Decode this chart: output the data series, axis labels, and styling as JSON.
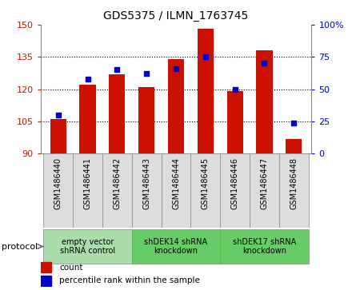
{
  "title": "GDS5375 / ILMN_1763745",
  "samples": [
    "GSM1486440",
    "GSM1486441",
    "GSM1486442",
    "GSM1486443",
    "GSM1486444",
    "GSM1486445",
    "GSM1486446",
    "GSM1486447",
    "GSM1486448"
  ],
  "counts": [
    106,
    122,
    127,
    121,
    134,
    148,
    119,
    138,
    97
  ],
  "percentiles": [
    30,
    58,
    65,
    62,
    66,
    75,
    50,
    70,
    24
  ],
  "ylim_left": [
    90,
    150
  ],
  "ylim_right": [
    0,
    100
  ],
  "yticks_left": [
    90,
    105,
    120,
    135,
    150
  ],
  "yticks_right": [
    0,
    25,
    50,
    75,
    100
  ],
  "bar_color": "#cc1100",
  "dot_color": "#0000cc",
  "bar_bottom": 90,
  "groups": [
    {
      "label": "empty vector\nshRNA control",
      "start": 0,
      "end": 3,
      "color": "#aaddaa"
    },
    {
      "label": "shDEK14 shRNA\nknockdown",
      "start": 3,
      "end": 6,
      "color": "#66cc66"
    },
    {
      "label": "shDEK17 shRNA\nknockdown",
      "start": 6,
      "end": 9,
      "color": "#66cc66"
    }
  ],
  "legend_count_label": "count",
  "legend_pct_label": "percentile rank within the sample",
  "protocol_label": "protocol",
  "background_color": "#ffffff",
  "sample_box_color": "#dddddd",
  "sample_box_edge": "#888888"
}
